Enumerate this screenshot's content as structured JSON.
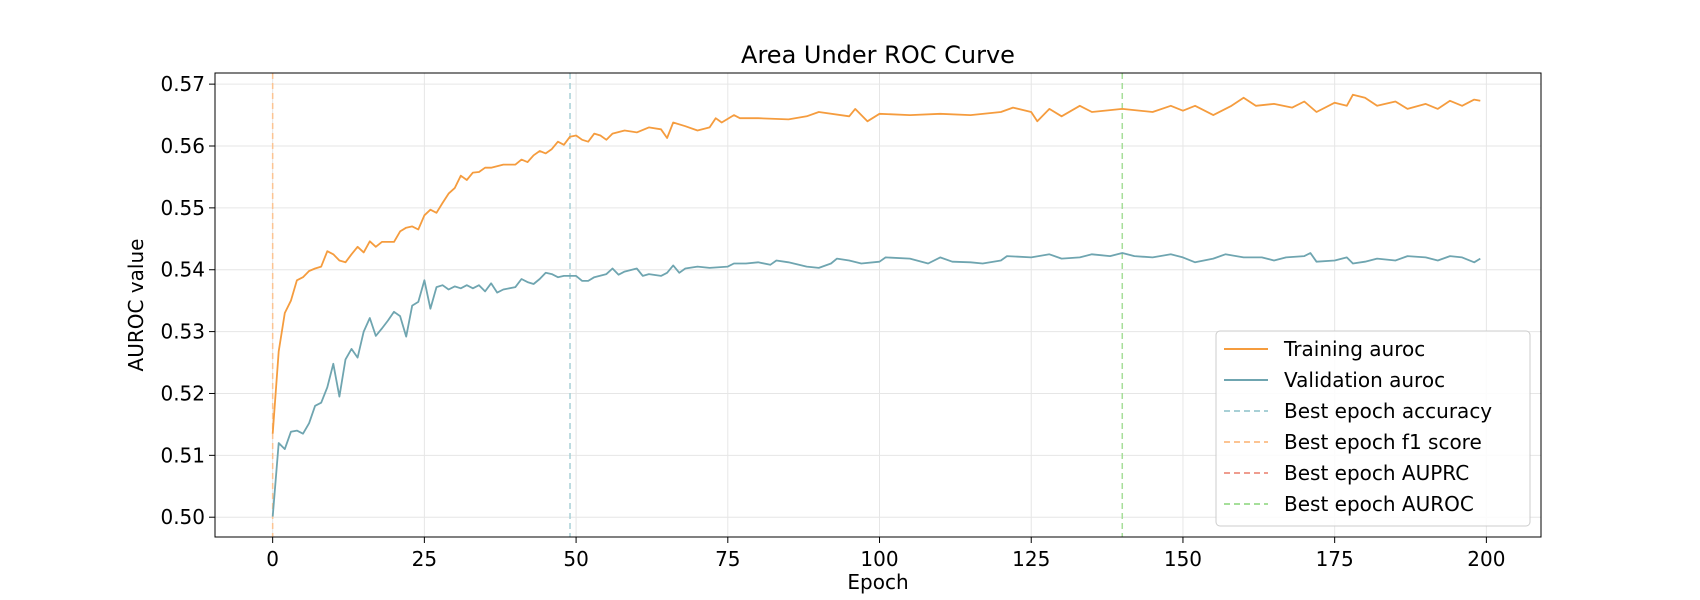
{
  "chart_data": {
    "type": "line",
    "title": "Area Under ROC Curve",
    "xlabel": "Epoch",
    "ylabel": "AUROC value",
    "xlim": [
      -9.5,
      209
    ],
    "ylim": [
      0.4968,
      0.5718
    ],
    "xticks": [
      0,
      25,
      50,
      75,
      100,
      125,
      150,
      175,
      200
    ],
    "yticks": [
      0.5,
      0.51,
      0.52,
      0.53,
      0.54,
      0.55,
      0.56,
      0.57
    ],
    "grid": true,
    "legend_position": "lower-right",
    "series": [
      {
        "name": "Training auroc",
        "color": "#f59c3e",
        "style": "solid",
        "anchors": [
          [
            0,
            0.5135
          ],
          [
            1,
            0.5268
          ],
          [
            2,
            0.533
          ],
          [
            3,
            0.535
          ],
          [
            4,
            0.5383
          ],
          [
            5,
            0.5388
          ],
          [
            6,
            0.5398
          ],
          [
            7,
            0.5402
          ],
          [
            8,
            0.5405
          ],
          [
            9,
            0.543
          ],
          [
            10,
            0.5425
          ],
          [
            11,
            0.5415
          ],
          [
            12,
            0.5412
          ],
          [
            13,
            0.5425
          ],
          [
            14,
            0.5437
          ],
          [
            15,
            0.5428
          ],
          [
            16,
            0.5446
          ],
          [
            17,
            0.5437
          ],
          [
            18,
            0.5445
          ],
          [
            20,
            0.5445
          ],
          [
            21,
            0.5462
          ],
          [
            22,
            0.5468
          ],
          [
            23,
            0.547
          ],
          [
            24,
            0.5465
          ],
          [
            25,
            0.5488
          ],
          [
            26,
            0.5497
          ],
          [
            27,
            0.5492
          ],
          [
            28,
            0.5508
          ],
          [
            29,
            0.5523
          ],
          [
            30,
            0.5532
          ],
          [
            31,
            0.5552
          ],
          [
            32,
            0.5545
          ],
          [
            33,
            0.5557
          ],
          [
            34,
            0.5558
          ],
          [
            35,
            0.5565
          ],
          [
            36,
            0.5565
          ],
          [
            38,
            0.557
          ],
          [
            40,
            0.557
          ],
          [
            41,
            0.5578
          ],
          [
            42,
            0.5574
          ],
          [
            43,
            0.5585
          ],
          [
            44,
            0.5592
          ],
          [
            45,
            0.5588
          ],
          [
            46,
            0.5595
          ],
          [
            47,
            0.5607
          ],
          [
            48,
            0.5602
          ],
          [
            49,
            0.5615
          ],
          [
            50,
            0.5617
          ],
          [
            51,
            0.561
          ],
          [
            52,
            0.5607
          ],
          [
            53,
            0.562
          ],
          [
            54,
            0.5617
          ],
          [
            55,
            0.561
          ],
          [
            56,
            0.562
          ],
          [
            58,
            0.5625
          ],
          [
            60,
            0.5622
          ],
          [
            62,
            0.563
          ],
          [
            64,
            0.5627
          ],
          [
            65,
            0.5613
          ],
          [
            66,
            0.5638
          ],
          [
            68,
            0.5632
          ],
          [
            70,
            0.5625
          ],
          [
            72,
            0.563
          ],
          [
            73,
            0.5645
          ],
          [
            74,
            0.5638
          ],
          [
            76,
            0.565
          ],
          [
            77,
            0.5645
          ],
          [
            80,
            0.5645
          ],
          [
            85,
            0.5643
          ],
          [
            88,
            0.5648
          ],
          [
            90,
            0.5655
          ],
          [
            95,
            0.5648
          ],
          [
            96,
            0.566
          ],
          [
            98,
            0.564
          ],
          [
            100,
            0.5652
          ],
          [
            105,
            0.565
          ],
          [
            110,
            0.5652
          ],
          [
            115,
            0.565
          ],
          [
            120,
            0.5655
          ],
          [
            122,
            0.5662
          ],
          [
            125,
            0.5655
          ],
          [
            126,
            0.564
          ],
          [
            128,
            0.566
          ],
          [
            130,
            0.5648
          ],
          [
            133,
            0.5665
          ],
          [
            135,
            0.5655
          ],
          [
            140,
            0.566
          ],
          [
            145,
            0.5655
          ],
          [
            148,
            0.5665
          ],
          [
            150,
            0.5657
          ],
          [
            152,
            0.5665
          ],
          [
            155,
            0.565
          ],
          [
            158,
            0.5665
          ],
          [
            160,
            0.5678
          ],
          [
            162,
            0.5665
          ],
          [
            165,
            0.5668
          ],
          [
            168,
            0.5662
          ],
          [
            170,
            0.5672
          ],
          [
            172,
            0.5655
          ],
          [
            175,
            0.567
          ],
          [
            177,
            0.5665
          ],
          [
            178,
            0.5683
          ],
          [
            180,
            0.5678
          ],
          [
            182,
            0.5665
          ],
          [
            185,
            0.5672
          ],
          [
            187,
            0.566
          ],
          [
            190,
            0.5668
          ],
          [
            192,
            0.566
          ],
          [
            194,
            0.5673
          ],
          [
            196,
            0.5665
          ],
          [
            198,
            0.5675
          ],
          [
            199,
            0.5673
          ]
        ]
      },
      {
        "name": "Validation auroc",
        "color": "#6fa5b0",
        "style": "solid",
        "anchors": [
          [
            0,
            0.5001
          ],
          [
            1,
            0.512
          ],
          [
            2,
            0.511
          ],
          [
            3,
            0.5138
          ],
          [
            4,
            0.514
          ],
          [
            5,
            0.5135
          ],
          [
            6,
            0.5152
          ],
          [
            7,
            0.518
          ],
          [
            8,
            0.5185
          ],
          [
            9,
            0.521
          ],
          [
            10,
            0.5248
          ],
          [
            11,
            0.5195
          ],
          [
            12,
            0.5255
          ],
          [
            13,
            0.5272
          ],
          [
            14,
            0.5258
          ],
          [
            15,
            0.53
          ],
          [
            16,
            0.5322
          ],
          [
            17,
            0.5293
          ],
          [
            18,
            0.5305
          ],
          [
            19,
            0.5318
          ],
          [
            20,
            0.5332
          ],
          [
            21,
            0.5325
          ],
          [
            22,
            0.5292
          ],
          [
            23,
            0.5342
          ],
          [
            24,
            0.5348
          ],
          [
            25,
            0.5383
          ],
          [
            26,
            0.5337
          ],
          [
            27,
            0.5372
          ],
          [
            28,
            0.5375
          ],
          [
            29,
            0.5368
          ],
          [
            30,
            0.5373
          ],
          [
            31,
            0.537
          ],
          [
            32,
            0.5375
          ],
          [
            33,
            0.537
          ],
          [
            34,
            0.5375
          ],
          [
            35,
            0.5365
          ],
          [
            36,
            0.5378
          ],
          [
            37,
            0.5363
          ],
          [
            38,
            0.5368
          ],
          [
            40,
            0.5372
          ],
          [
            41,
            0.5385
          ],
          [
            42,
            0.538
          ],
          [
            43,
            0.5377
          ],
          [
            44,
            0.5385
          ],
          [
            45,
            0.5395
          ],
          [
            46,
            0.5393
          ],
          [
            47,
            0.5388
          ],
          [
            48,
            0.539
          ],
          [
            50,
            0.539
          ],
          [
            51,
            0.5382
          ],
          [
            52,
            0.5382
          ],
          [
            53,
            0.5388
          ],
          [
            55,
            0.5393
          ],
          [
            56,
            0.5402
          ],
          [
            57,
            0.5392
          ],
          [
            58,
            0.5397
          ],
          [
            60,
            0.5402
          ],
          [
            61,
            0.539
          ],
          [
            62,
            0.5393
          ],
          [
            64,
            0.539
          ],
          [
            65,
            0.5395
          ],
          [
            66,
            0.5407
          ],
          [
            67,
            0.5395
          ],
          [
            68,
            0.5402
          ],
          [
            70,
            0.5405
          ],
          [
            72,
            0.5403
          ],
          [
            75,
            0.5405
          ],
          [
            76,
            0.541
          ],
          [
            78,
            0.541
          ],
          [
            80,
            0.5412
          ],
          [
            82,
            0.5408
          ],
          [
            83,
            0.5415
          ],
          [
            85,
            0.5412
          ],
          [
            88,
            0.5405
          ],
          [
            90,
            0.5403
          ],
          [
            92,
            0.541
          ],
          [
            93,
            0.5418
          ],
          [
            95,
            0.5415
          ],
          [
            97,
            0.541
          ],
          [
            100,
            0.5413
          ],
          [
            101,
            0.542
          ],
          [
            105,
            0.5418
          ],
          [
            108,
            0.541
          ],
          [
            110,
            0.542
          ],
          [
            112,
            0.5413
          ],
          [
            115,
            0.5412
          ],
          [
            117,
            0.541
          ],
          [
            120,
            0.5415
          ],
          [
            121,
            0.5422
          ],
          [
            125,
            0.542
          ],
          [
            128,
            0.5425
          ],
          [
            130,
            0.5418
          ],
          [
            133,
            0.542
          ],
          [
            135,
            0.5425
          ],
          [
            138,
            0.5422
          ],
          [
            140,
            0.5427
          ],
          [
            142,
            0.5422
          ],
          [
            145,
            0.542
          ],
          [
            148,
            0.5425
          ],
          [
            150,
            0.542
          ],
          [
            152,
            0.5412
          ],
          [
            155,
            0.5418
          ],
          [
            157,
            0.5425
          ],
          [
            160,
            0.542
          ],
          [
            163,
            0.542
          ],
          [
            165,
            0.5415
          ],
          [
            167,
            0.542
          ],
          [
            170,
            0.5422
          ],
          [
            171,
            0.5427
          ],
          [
            172,
            0.5413
          ],
          [
            175,
            0.5415
          ],
          [
            177,
            0.542
          ],
          [
            178,
            0.541
          ],
          [
            180,
            0.5413
          ],
          [
            182,
            0.5418
          ],
          [
            185,
            0.5415
          ],
          [
            187,
            0.5422
          ],
          [
            190,
            0.542
          ],
          [
            192,
            0.5415
          ],
          [
            194,
            0.5422
          ],
          [
            196,
            0.542
          ],
          [
            198,
            0.5412
          ],
          [
            199,
            0.5418
          ]
        ]
      }
    ],
    "markers": [
      {
        "name": "Best epoch accuracy",
        "color": "#a8d0d6",
        "x": 49
      },
      {
        "name": "Best epoch f1 score",
        "color": "#fcc492",
        "x": 0
      },
      {
        "name": "Best epoch AUPRC",
        "color": "#ef9d8f",
        "x": 140
      },
      {
        "name": "Best epoch AUROC",
        "color": "#a6df9a",
        "x": 140
      }
    ]
  }
}
